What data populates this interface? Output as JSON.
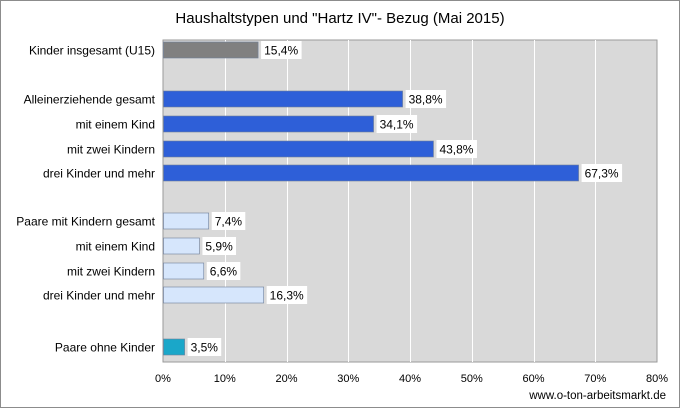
{
  "chart_data": {
    "type": "bar",
    "orientation": "horizontal",
    "title": "Haushaltstypen und \"Hartz IV\"- Bezug (Mai 2015)",
    "xlabel": "",
    "ylabel": "",
    "xlim": [
      0,
      80
    ],
    "x_ticks": [
      "0%",
      "10%",
      "20%",
      "30%",
      "40%",
      "50%",
      "60%",
      "70%",
      "80%"
    ],
    "grid": true,
    "categories": [
      "Kinder insgesamt (U15)",
      "Alleinerziehende gesamt",
      "mit einem Kind",
      "mit zwei Kindern",
      "drei Kinder und mehr",
      "Paare mit Kindern gesamt",
      "mit einem Kind",
      "mit zwei Kindern",
      "drei Kinder und mehr",
      "Paare ohne Kinder"
    ],
    "values": [
      15.4,
      38.8,
      34.1,
      43.8,
      67.3,
      7.4,
      5.9,
      6.6,
      16.3,
      3.5
    ],
    "value_labels": [
      "15,4%",
      "38,8%",
      "34,1%",
      "43,8%",
      "67,3%",
      "7,4%",
      "5,9%",
      "6,6%",
      "16,3%",
      "3,5%"
    ],
    "bar_colors": [
      "#808080",
      "#2e5fd8",
      "#2e5fd8",
      "#2e5fd8",
      "#2e5fd8",
      "#d6e6fc",
      "#d6e6fc",
      "#d6e6fc",
      "#d6e6fc",
      "#1aa7c9"
    ]
  },
  "footer": "www.o-ton-arbeitsmarkt.de"
}
